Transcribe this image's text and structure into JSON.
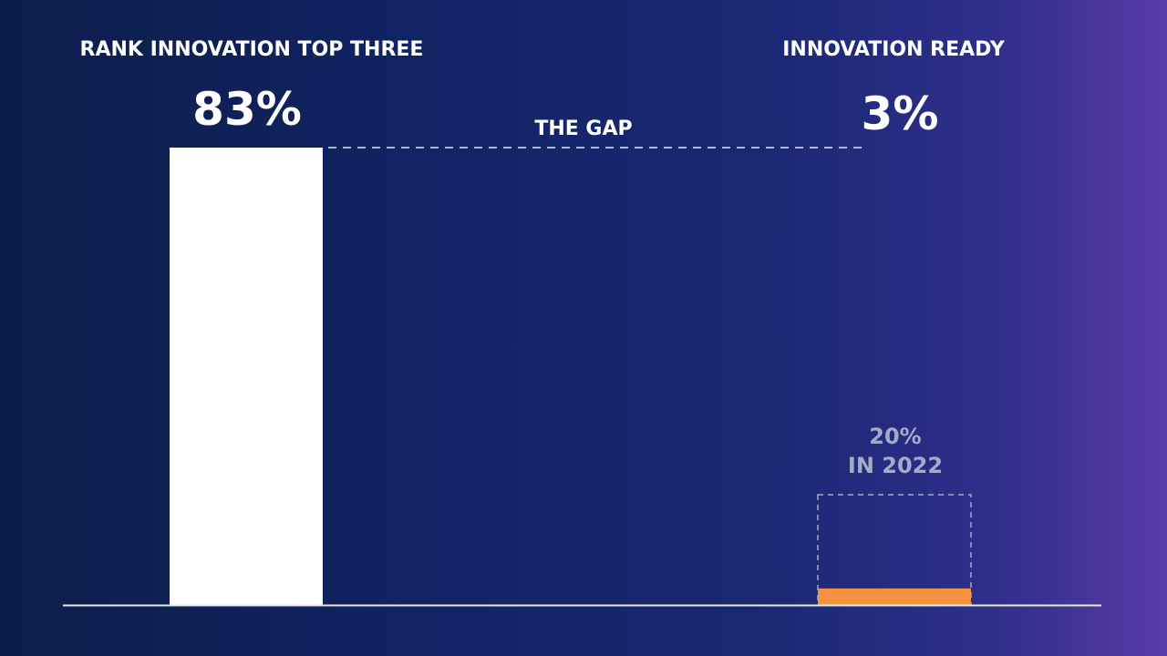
{
  "colors": {
    "bar_primary": "#ffffff",
    "bar_highlight": "#f5913f",
    "prior_outline": "#a3abc9",
    "baseline": "#e6e8f2",
    "gap_line": "#e6e8f2"
  },
  "chart_data": {
    "type": "bar",
    "categories": [
      "RANK INNOVATION TOP THREE",
      "INNOVATION READY"
    ],
    "values": [
      83,
      3
    ],
    "value_labels": [
      "83%",
      "3%"
    ],
    "ylim": [
      0,
      100
    ],
    "grid": false,
    "legend": "none",
    "annotations": {
      "gap_label": "THE GAP",
      "prior_value": 20,
      "prior_label_line1": "20%",
      "prior_label_line2": "IN 2022"
    }
  }
}
